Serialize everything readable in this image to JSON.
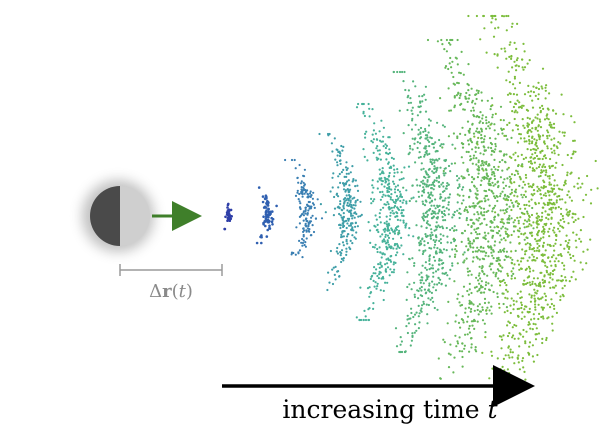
{
  "figure": {
    "displacement_label": {
      "delta": "Δ",
      "vector": "r",
      "open": "(",
      "variable": "t",
      "close": ")"
    },
    "time_axis_label": {
      "text": "increasing time ",
      "variable": "t"
    },
    "colors": {
      "sphere_dark": "#4a4a4a",
      "sphere_light": "#cfcfcf",
      "velocity_arrow": "#3f7f2a",
      "bracket": "#9a9a9a",
      "time_arrow": "#000000",
      "shell_gradient": [
        "#2f3fa8",
        "#2f5fb0",
        "#3a7fb2",
        "#3f9ea8",
        "#47b29a",
        "#55b47c",
        "#67b85a",
        "#7cbd3c"
      ]
    },
    "shells": [
      {
        "density": 30
      },
      {
        "density": 70
      },
      {
        "density": 140
      },
      {
        "density": 240
      },
      {
        "density": 380
      },
      {
        "density": 550
      },
      {
        "density": 760
      },
      {
        "density": 1000
      }
    ]
  }
}
